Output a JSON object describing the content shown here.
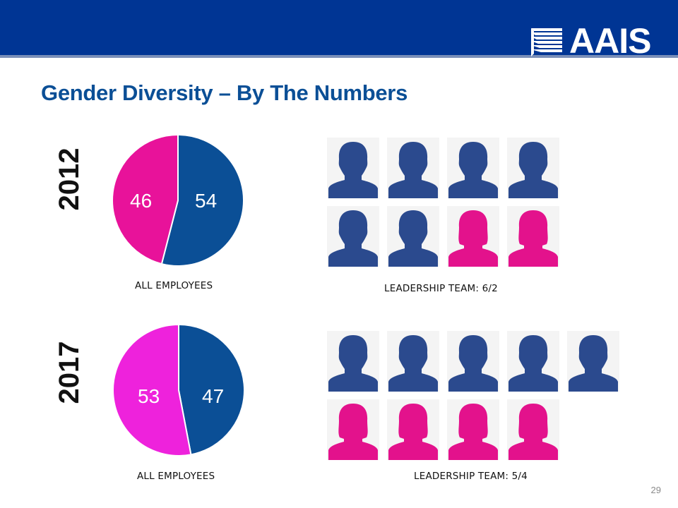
{
  "title": "Gender Diversity – By The Numbers",
  "logo": {
    "text": "AAIS"
  },
  "page_number": "29",
  "colors": {
    "male": "#0b4f96",
    "female_2012": "#e8129a",
    "female_2017": "#ee22dc",
    "icon_male": "#2b4a8e",
    "icon_female": "#e3128c",
    "header": "#003594"
  },
  "chart_data": [
    {
      "type": "pie",
      "year": "2012",
      "caption": "ALL EMPLOYEES",
      "series": [
        {
          "name": "male",
          "label": "54",
          "value": 54
        },
        {
          "name": "female",
          "label": "46",
          "value": 46
        }
      ]
    },
    {
      "type": "pie",
      "year": "2017",
      "caption": "ALL EMPLOYEES",
      "series": [
        {
          "name": "male",
          "label": "47",
          "value": 47
        },
        {
          "name": "female",
          "label": "53",
          "value": 53
        }
      ]
    }
  ],
  "leadership": [
    {
      "year": "2012",
      "caption": "LEADERSHIP TEAM: 6/2",
      "male": 6,
      "female": 2
    },
    {
      "year": "2017",
      "caption": "LEADERSHIP TEAM: 5/4",
      "male": 5,
      "female": 4
    }
  ]
}
